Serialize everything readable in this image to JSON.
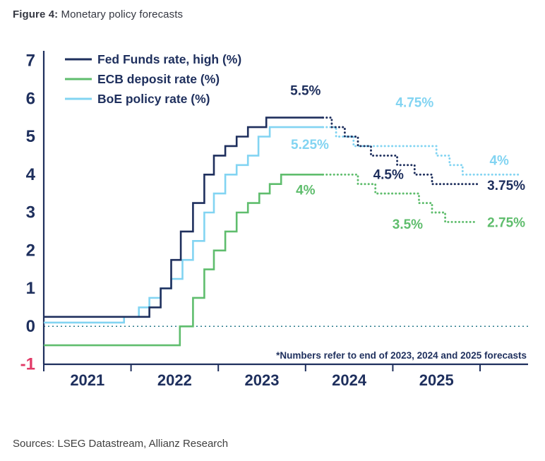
{
  "figure": {
    "title_prefix": "Figure 4:",
    "title_rest": " Monetary policy forecasts",
    "source": "Sources: LSEG Datastream, Allianz Research",
    "footnote": "*Numbers refer to end of 2023, 2024 and 2025 forecasts"
  },
  "colors": {
    "navy": "#1e2f5d",
    "green": "#5fbd6d",
    "lightblue": "#82d4f2",
    "pink": "#e13a67",
    "axis": "#1e2f5d",
    "zero_line": "#2a7b8c",
    "title_text": "#343741",
    "source_text": "#3f3f3f"
  },
  "chart_data": {
    "type": "line",
    "title": "Monetary policy forecasts",
    "xlabel": "",
    "ylabel": "",
    "grid": false,
    "legend_position": "top-left",
    "x_range": [
      2021,
      2026.55
    ],
    "y_range": [
      -1,
      7
    ],
    "x_ticks": [
      2021,
      2022,
      2023,
      2024,
      2025
    ],
    "x_tick_marks": [
      2021,
      2022,
      2023,
      2024,
      2025,
      2026
    ],
    "y_ticks": [
      -1,
      0,
      1,
      2,
      3,
      4,
      5,
      6,
      7
    ],
    "legend": [
      {
        "label": "Fed Funds rate, high (%)",
        "color_key": "navy"
      },
      {
        "label": "ECB deposit rate (%)",
        "color_key": "green"
      },
      {
        "label": "BoE policy rate (%)",
        "color_key": "lightblue"
      }
    ],
    "series": [
      {
        "name": "ECB deposit rate (%)",
        "color_key": "green",
        "forecast_from": 2024.2,
        "end": 2025.95,
        "points": [
          [
            2021.0,
            -0.5
          ],
          [
            2022.56,
            0.0
          ],
          [
            2022.71,
            0.75
          ],
          [
            2022.84,
            1.5
          ],
          [
            2022.95,
            2.0
          ],
          [
            2023.08,
            2.5
          ],
          [
            2023.21,
            3.0
          ],
          [
            2023.34,
            3.25
          ],
          [
            2023.47,
            3.5
          ],
          [
            2023.59,
            3.75
          ],
          [
            2023.72,
            4.0
          ],
          [
            2024.6,
            3.75
          ],
          [
            2024.8,
            3.5
          ],
          [
            2025.3,
            3.25
          ],
          [
            2025.45,
            3.0
          ],
          [
            2025.6,
            2.75
          ]
        ]
      },
      {
        "name": "BoE policy rate (%)",
        "color_key": "lightblue",
        "forecast_from": 2024.2,
        "end": 2026.45,
        "points": [
          [
            2021.0,
            0.1
          ],
          [
            2021.92,
            0.25
          ],
          [
            2022.09,
            0.5
          ],
          [
            2022.21,
            0.75
          ],
          [
            2022.34,
            1.0
          ],
          [
            2022.46,
            1.25
          ],
          [
            2022.59,
            1.75
          ],
          [
            2022.71,
            2.25
          ],
          [
            2022.84,
            3.0
          ],
          [
            2022.95,
            3.5
          ],
          [
            2023.08,
            4.0
          ],
          [
            2023.21,
            4.25
          ],
          [
            2023.34,
            4.5
          ],
          [
            2023.46,
            5.0
          ],
          [
            2023.59,
            5.25
          ],
          [
            2024.35,
            5.0
          ],
          [
            2024.55,
            4.75
          ],
          [
            2025.5,
            4.5
          ],
          [
            2025.65,
            4.25
          ],
          [
            2025.8,
            4.0
          ]
        ]
      },
      {
        "name": "Fed Funds rate, high (%)",
        "color_key": "navy",
        "forecast_from": 2024.2,
        "end": 2026.0,
        "points": [
          [
            2021.0,
            0.25
          ],
          [
            2022.21,
            0.5
          ],
          [
            2022.34,
            1.0
          ],
          [
            2022.46,
            1.75
          ],
          [
            2022.57,
            2.5
          ],
          [
            2022.71,
            3.25
          ],
          [
            2022.84,
            4.0
          ],
          [
            2022.95,
            4.5
          ],
          [
            2023.08,
            4.75
          ],
          [
            2023.21,
            5.0
          ],
          [
            2023.34,
            5.25
          ],
          [
            2023.55,
            5.5
          ],
          [
            2024.3,
            5.25
          ],
          [
            2024.45,
            5.0
          ],
          [
            2024.6,
            4.75
          ],
          [
            2024.75,
            4.5
          ],
          [
            2025.05,
            4.25
          ],
          [
            2025.25,
            4.0
          ],
          [
            2025.45,
            3.75
          ]
        ]
      }
    ],
    "annotations": [
      {
        "text": "5.5%",
        "x": 2024.0,
        "y": 6.2,
        "color_key": "navy"
      },
      {
        "text": "5.25%",
        "x": 2024.05,
        "y": 4.78,
        "color_key": "lightblue"
      },
      {
        "text": "4%",
        "x": 2024.0,
        "y": 3.58,
        "color_key": "green"
      },
      {
        "text": "4.75%",
        "x": 2025.25,
        "y": 5.88,
        "color_key": "lightblue"
      },
      {
        "text": "4.5%",
        "x": 2024.95,
        "y": 3.99,
        "color_key": "navy"
      },
      {
        "text": "3.5%",
        "x": 2025.17,
        "y": 2.67,
        "color_key": "green"
      },
      {
        "text": "4%",
        "x": 2026.22,
        "y": 4.36,
        "color_key": "lightblue"
      },
      {
        "text": "3.75%",
        "x": 2026.3,
        "y": 3.7,
        "color_key": "navy"
      },
      {
        "text": "2.75%",
        "x": 2026.3,
        "y": 2.72,
        "color_key": "green"
      }
    ],
    "forecast_note": "*Numbers refer to end of 2023, 2024 and 2025 forecasts"
  }
}
